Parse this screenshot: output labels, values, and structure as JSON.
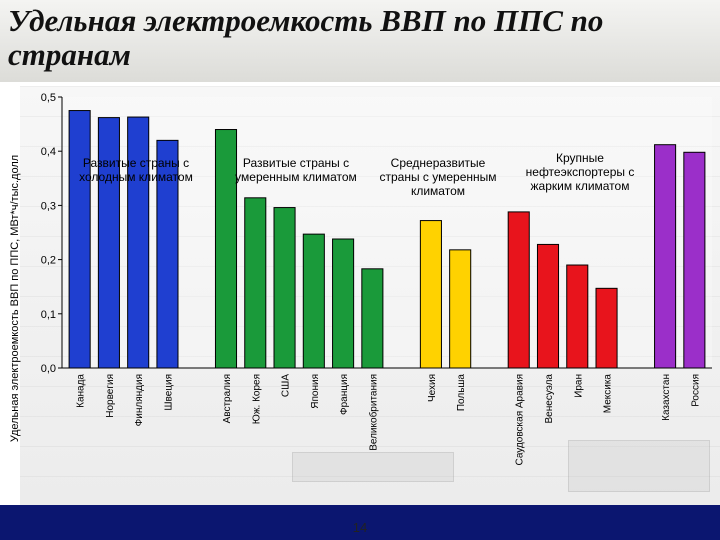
{
  "slide": {
    "title": "Удельная электроемкость ВВП по ППС по странам",
    "page_number": "14"
  },
  "colors": {
    "footer": "#0b1670",
    "canada_group": "#1f3fd0",
    "temperate_group": "#1a9a3a",
    "developing_group": "#ffd200",
    "exporters_group": "#e8141c",
    "large_exporters_group": "#9b2fc9"
  },
  "chart_data": {
    "type": "bar",
    "ylabel": "Удельная электроемкость ВВП по ППС, МВт*ч/тыс.долл",
    "xlabel": "",
    "ylim": [
      0,
      0.5
    ],
    "yticks": [
      "0,0",
      "0,1",
      "0,2",
      "0,3",
      "0,4",
      "0,5"
    ],
    "grid": false,
    "categories": [
      "Канада",
      "Норвегия",
      "Финляндия",
      "Швеция",
      "Австралия",
      "Юж. Корея",
      "США",
      "Япония",
      "Франция",
      "Великобритания",
      "Чехия",
      "Польша",
      "Саудовская Аравия",
      "Венесуэла",
      "Иран",
      "Мексика",
      "Казахстан",
      "Россия"
    ],
    "values": [
      0.475,
      0.462,
      0.463,
      0.42,
      0.44,
      0.314,
      0.296,
      0.247,
      0.238,
      0.183,
      0.272,
      0.218,
      0.288,
      0.228,
      0.19,
      0.147,
      0.412,
      0.398
    ],
    "groups": [
      {
        "label": [
          "Развитые страны с",
          "холодным климатом"
        ],
        "color": "#1f3fd0",
        "count": 4
      },
      {
        "label": [
          "Развитые страны с",
          "умеренным климатом"
        ],
        "color": "#1a9a3a",
        "count": 6
      },
      {
        "label": [
          "Среднеразвитые",
          "страны с умеренным",
          "климатом"
        ],
        "color": "#ffd200",
        "count": 2
      },
      {
        "label": [
          "Крупные",
          "нефтеэкспортеры с",
          "жарким климатом"
        ],
        "color": "#e8141c",
        "count": 4
      },
      {
        "label": [],
        "color": "#9b2fc9",
        "count": 2
      }
    ]
  }
}
